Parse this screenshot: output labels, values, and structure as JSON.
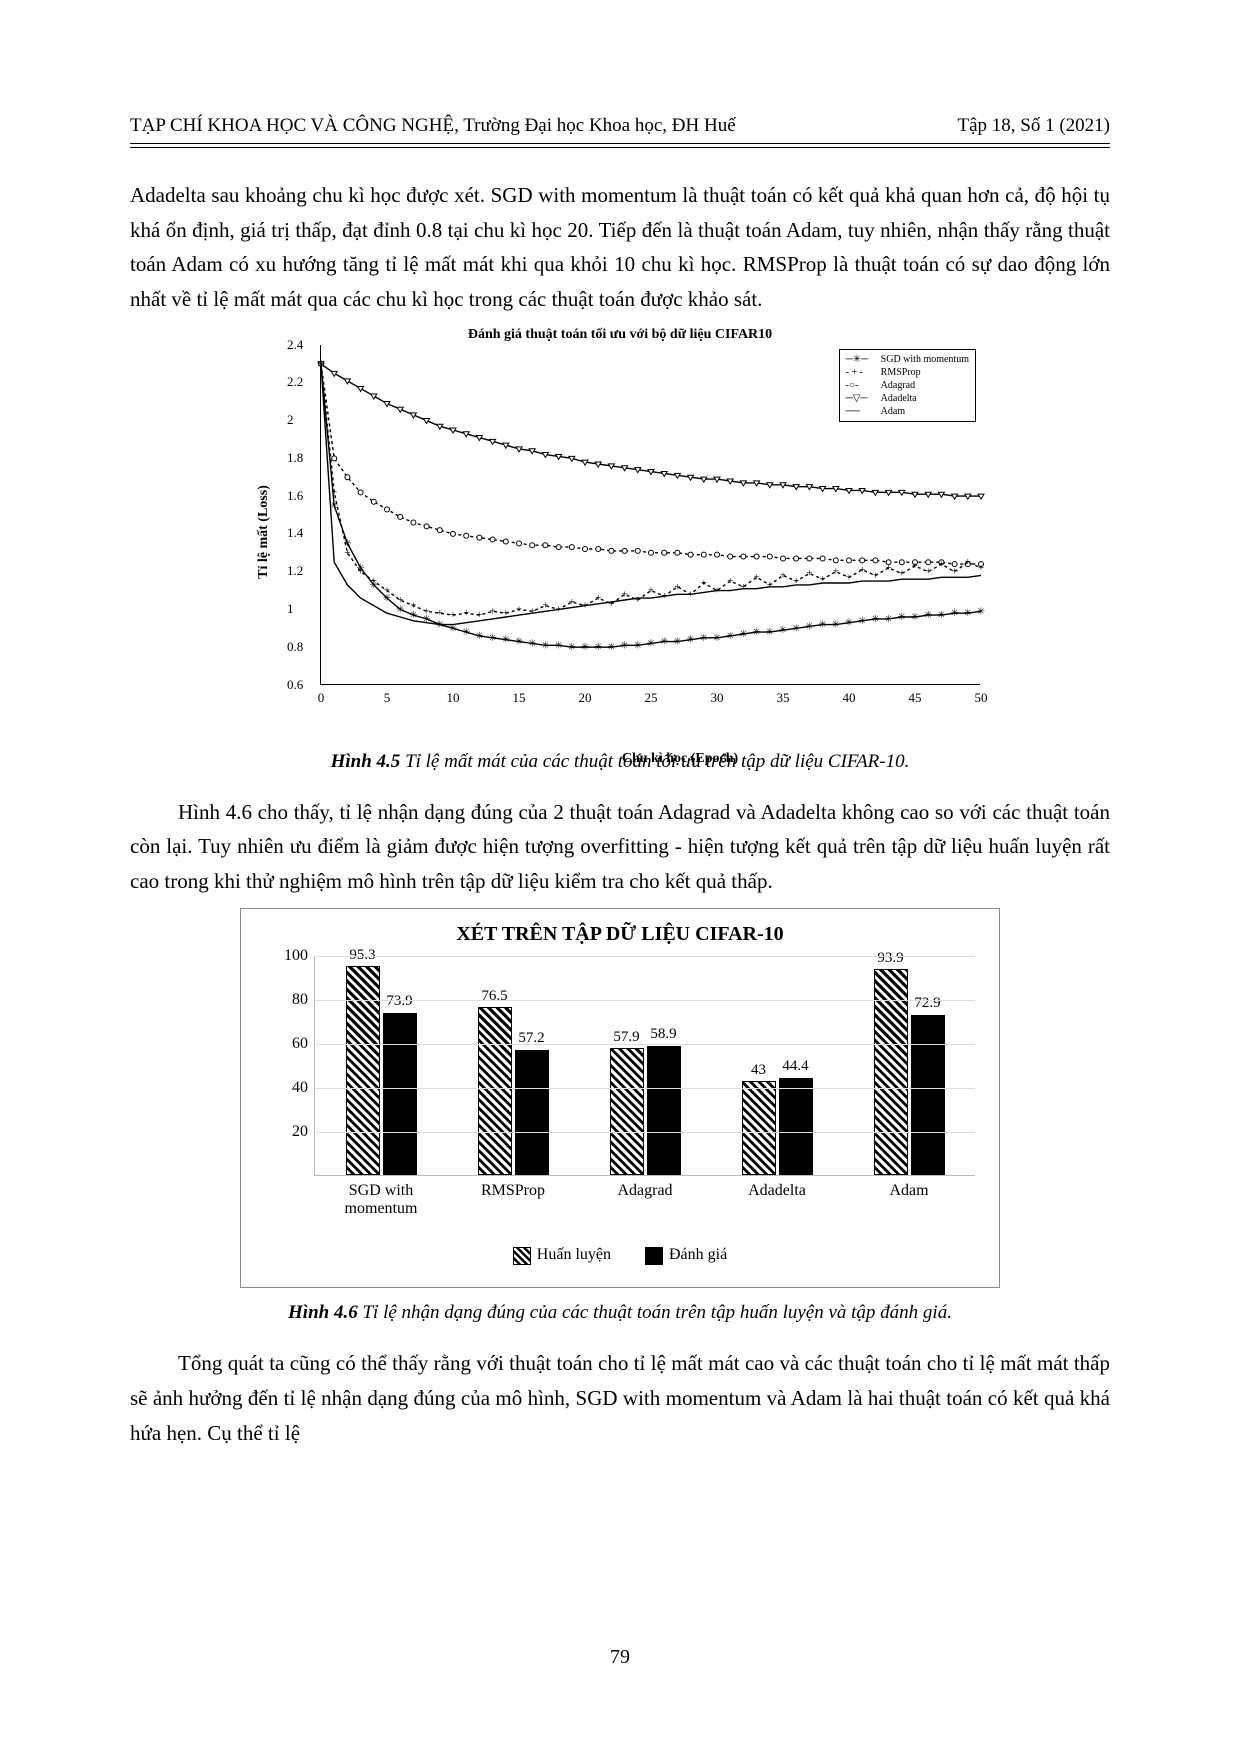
{
  "header": {
    "journal": "TẠP CHÍ KHOA HỌC VÀ CÔNG NGHỆ, Trường Đại học Khoa học, ĐH Huế",
    "issue": "Tập 18, Số 1 (2021)"
  },
  "paragraphs": {
    "p1": "Adadelta sau khoảng chu kì học được xét. SGD with momentum là thuật toán có kết quả khả quan hơn cả, độ hội tụ khá ổn định, giá trị thấp, đạt đỉnh 0.8 tại chu kì học 20. Tiếp đến là thuật toán Adam, tuy nhiên, nhận thấy rằng thuật toán Adam có xu hướng tăng tỉ lệ mất mát khi qua khỏi 10 chu kì học. RMSProp là thuật toán có sự dao động lớn nhất về tỉ lệ mất mát qua các chu kì học trong các thuật toán được khảo sát.",
    "p2": "Hình 4.6 cho thấy, tỉ lệ nhận dạng đúng của 2 thuật toán Adagrad và Adadelta không cao so với các thuật toán còn lại. Tuy nhiên ưu điểm là giảm được hiện tượng overfitting - hiện tượng kết quả trên tập dữ liệu huấn luyện rất cao trong khi thử nghiệm mô hình trên tập dữ liệu kiểm tra cho kết quả thấp.",
    "p3": "Tổng quát ta cũng có thể thấy rằng với thuật toán cho tỉ lệ mất mát cao và các thuật toán cho tỉ lệ mất mát thấp sẽ ảnh hưởng đến tỉ lệ nhận dạng đúng của mô hình, SGD with momentum và Adam là hai thuật toán có kết quả khá hứa hẹn. Cụ thể tỉ lệ"
  },
  "captions": {
    "c1_bold": "Hình 4.5",
    "c1_text": " Tỉ lệ mất mát của các thuật toán tối ưu trên tập dữ liệu CIFAR-10.",
    "c2_bold": "Hình 4.6",
    "c2_text": " Tỉ lệ nhận dạng đúng của các thuật toán trên tập huấn luyện và tập đánh giá."
  },
  "chart1": {
    "type": "line",
    "title": "Đánh giá thuật toán tối ưu với bộ dữ liệu CIFAR10",
    "xlabel": "Chu kì học (Epoch)",
    "ylabel": "Tỉ lệ mất (Loss)",
    "xlim": [
      0,
      50
    ],
    "ylim": [
      0.6,
      2.4
    ],
    "xticks": [
      0,
      5,
      10,
      15,
      20,
      25,
      30,
      35,
      40,
      45,
      50
    ],
    "yticks": [
      0.6,
      0.8,
      1,
      1.2,
      1.4,
      1.6,
      1.8,
      2,
      2.2,
      2.4
    ],
    "line_color": "#000000",
    "background_color": "#ffffff",
    "legend": {
      "items": [
        "SGD with momentum",
        "RMSProp",
        "Adagrad",
        "Adadelta",
        "Adam"
      ],
      "markers": [
        "*",
        "+",
        "o",
        "▽",
        "none"
      ],
      "dashes": [
        "solid",
        "3,3",
        "3,3",
        "solid",
        "solid"
      ]
    },
    "x": [
      0,
      1,
      2,
      3,
      4,
      5,
      6,
      7,
      8,
      9,
      10,
      11,
      12,
      13,
      14,
      15,
      16,
      17,
      18,
      19,
      20,
      21,
      22,
      23,
      24,
      25,
      26,
      27,
      28,
      29,
      30,
      31,
      32,
      33,
      34,
      35,
      36,
      37,
      38,
      39,
      40,
      41,
      42,
      43,
      44,
      45,
      46,
      47,
      48,
      49,
      50
    ],
    "series": {
      "sgd": [
        2.3,
        1.55,
        1.35,
        1.22,
        1.13,
        1.06,
        1.0,
        0.97,
        0.95,
        0.92,
        0.9,
        0.88,
        0.86,
        0.85,
        0.84,
        0.83,
        0.82,
        0.81,
        0.81,
        0.8,
        0.8,
        0.8,
        0.8,
        0.81,
        0.81,
        0.82,
        0.83,
        0.83,
        0.84,
        0.85,
        0.85,
        0.86,
        0.87,
        0.88,
        0.88,
        0.89,
        0.9,
        0.91,
        0.92,
        0.92,
        0.93,
        0.94,
        0.95,
        0.95,
        0.96,
        0.96,
        0.97,
        0.97,
        0.98,
        0.98,
        0.99
      ],
      "rmsprop": [
        2.3,
        1.62,
        1.3,
        1.2,
        1.15,
        1.1,
        1.05,
        1.02,
        0.99,
        0.98,
        0.97,
        0.98,
        0.97,
        0.99,
        0.98,
        1.0,
        0.99,
        1.02,
        1.0,
        1.04,
        1.02,
        1.06,
        1.03,
        1.08,
        1.05,
        1.1,
        1.07,
        1.12,
        1.08,
        1.14,
        1.1,
        1.15,
        1.12,
        1.17,
        1.13,
        1.18,
        1.15,
        1.19,
        1.16,
        1.2,
        1.17,
        1.21,
        1.18,
        1.22,
        1.19,
        1.23,
        1.2,
        1.24,
        1.2,
        1.25,
        1.22
      ],
      "adagrad": [
        2.3,
        1.8,
        1.7,
        1.62,
        1.57,
        1.53,
        1.49,
        1.46,
        1.44,
        1.42,
        1.4,
        1.39,
        1.38,
        1.37,
        1.36,
        1.35,
        1.34,
        1.34,
        1.33,
        1.33,
        1.32,
        1.32,
        1.31,
        1.31,
        1.31,
        1.3,
        1.3,
        1.3,
        1.29,
        1.29,
        1.29,
        1.28,
        1.28,
        1.28,
        1.28,
        1.27,
        1.27,
        1.27,
        1.27,
        1.26,
        1.26,
        1.26,
        1.26,
        1.25,
        1.25,
        1.25,
        1.25,
        1.25,
        1.24,
        1.24,
        1.24
      ],
      "adadelta": [
        2.3,
        2.25,
        2.21,
        2.17,
        2.13,
        2.09,
        2.06,
        2.03,
        2.0,
        1.97,
        1.95,
        1.93,
        1.91,
        1.89,
        1.87,
        1.85,
        1.84,
        1.82,
        1.81,
        1.8,
        1.78,
        1.77,
        1.76,
        1.75,
        1.74,
        1.73,
        1.72,
        1.71,
        1.7,
        1.69,
        1.69,
        1.68,
        1.67,
        1.67,
        1.66,
        1.66,
        1.65,
        1.65,
        1.64,
        1.64,
        1.63,
        1.63,
        1.62,
        1.62,
        1.62,
        1.61,
        1.61,
        1.61,
        1.6,
        1.6,
        1.6
      ],
      "adam": [
        2.3,
        1.25,
        1.13,
        1.06,
        1.02,
        0.98,
        0.96,
        0.94,
        0.93,
        0.92,
        0.92,
        0.93,
        0.94,
        0.95,
        0.96,
        0.97,
        0.98,
        0.99,
        1.0,
        1.01,
        1.02,
        1.03,
        1.04,
        1.05,
        1.06,
        1.06,
        1.07,
        1.08,
        1.08,
        1.09,
        1.1,
        1.1,
        1.11,
        1.11,
        1.12,
        1.12,
        1.13,
        1.13,
        1.14,
        1.14,
        1.14,
        1.15,
        1.15,
        1.15,
        1.16,
        1.16,
        1.16,
        1.17,
        1.17,
        1.17,
        1.18
      ]
    }
  },
  "chart2": {
    "type": "bar",
    "title": "XÉT TRÊN TẬP DỮ LIỆU CIFAR-10",
    "categories": [
      "SGD with momentum",
      "RMSProp",
      "Adagrad",
      "Adadelta",
      "Adam"
    ],
    "series_labels": {
      "train": "Huấn luyện",
      "eval": "Đánh giá"
    },
    "train": [
      95.3,
      76.5,
      57.9,
      43,
      93.9
    ],
    "eval": [
      73.9,
      57.2,
      58.9,
      44.4,
      72.9
    ],
    "ylim": [
      0,
      100
    ],
    "yticks": [
      20,
      40,
      60,
      80,
      100
    ],
    "bar_colors": {
      "train_pattern": "diagonal-hatch",
      "eval": "#000000"
    },
    "border_color": "#888888",
    "grid_color": "#dddddd"
  },
  "page_number": "79"
}
